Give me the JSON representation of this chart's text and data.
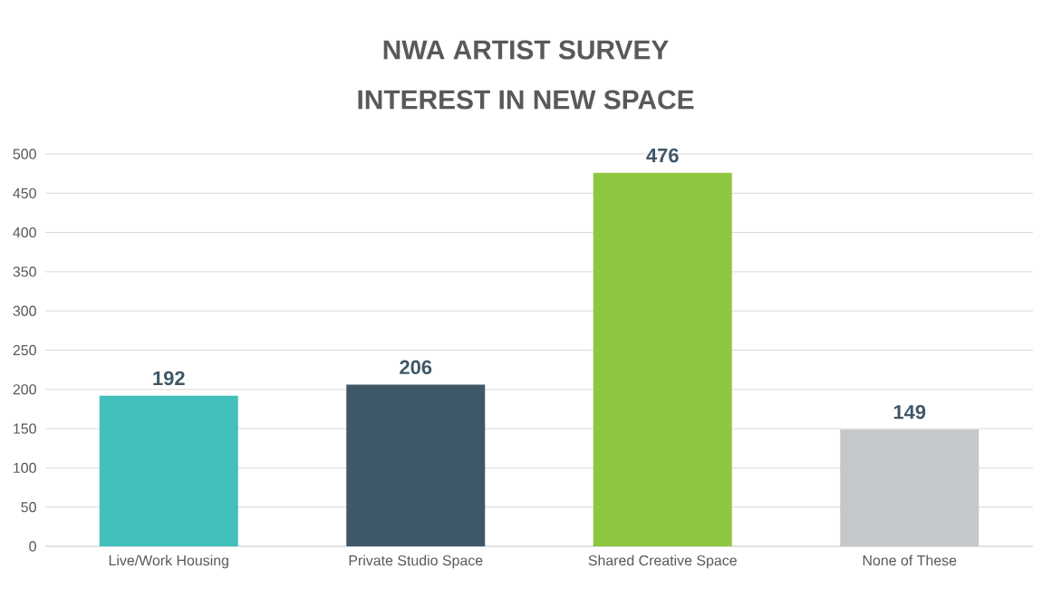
{
  "chart_data": {
    "type": "bar",
    "title": "NWA ARTIST SURVEY",
    "subtitle": "INTEREST IN NEW SPACE",
    "categories": [
      "Live/Work Housing",
      "Private Studio Space",
      "Shared Creative Space",
      "None of These"
    ],
    "values": [
      192,
      206,
      476,
      149
    ],
    "colors": [
      "#43bfbd",
      "#3f5868",
      "#8dc63f",
      "#c4c8cb"
    ],
    "ylim": [
      0,
      500
    ],
    "yticks": [
      0,
      50,
      100,
      150,
      200,
      250,
      300,
      350,
      400,
      450,
      500
    ],
    "grid": "y",
    "data_labels": true
  }
}
